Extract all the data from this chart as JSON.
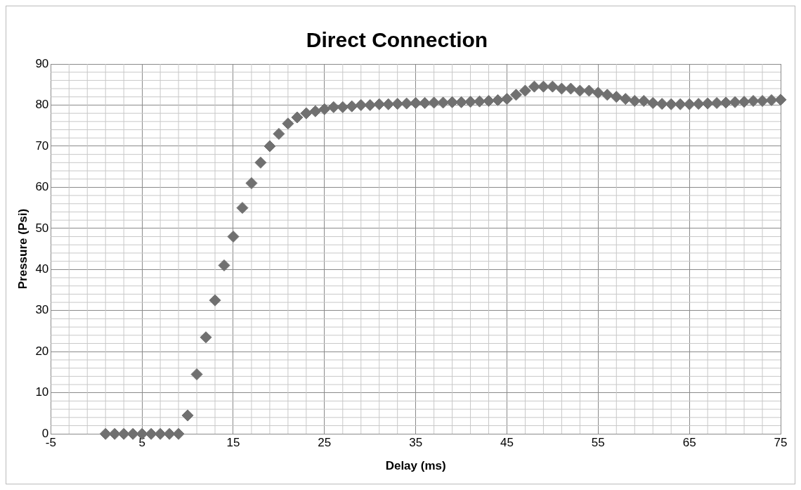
{
  "chart_data": {
    "type": "scatter",
    "title": "Direct Connection",
    "xlabel": "Delay (ms)",
    "ylabel": "Pressure (Psi)",
    "xlim": [
      -5,
      75
    ],
    "xticks": [
      -5,
      5,
      15,
      25,
      35,
      45,
      55,
      65,
      75
    ],
    "ylim": [
      0,
      90
    ],
    "yticks": [
      0,
      10,
      20,
      30,
      40,
      50,
      60,
      70,
      80,
      90
    ],
    "grid": true,
    "legend": false,
    "marker": "diamond",
    "series": [
      {
        "color": "#707070",
        "x": [
          1,
          2,
          3,
          4,
          5,
          6,
          7,
          8,
          9,
          10,
          11,
          12,
          13,
          14,
          15,
          16,
          17,
          18,
          19,
          20,
          21,
          22,
          23,
          24,
          25,
          26,
          27,
          28,
          29,
          30,
          31,
          32,
          33,
          34,
          35,
          36,
          37,
          38,
          39,
          40,
          41,
          42,
          43,
          44,
          45,
          46,
          47,
          48,
          49,
          50,
          51,
          52,
          53,
          54,
          55,
          56,
          57,
          58,
          59,
          60,
          61,
          62,
          63,
          64,
          65,
          66,
          67,
          68,
          69,
          70,
          71,
          72,
          73,
          74,
          75
        ],
        "values": [
          0,
          0,
          0,
          0,
          0,
          0,
          0,
          0,
          0,
          4.5,
          14.5,
          23.5,
          32.5,
          41,
          48,
          55,
          61,
          66,
          70,
          73,
          75.5,
          77,
          78,
          78.5,
          79,
          79.5,
          79.5,
          79.7,
          80,
          80,
          80.2,
          80.2,
          80.3,
          80.4,
          80.5,
          80.5,
          80.6,
          80.6,
          80.7,
          80.7,
          80.8,
          80.9,
          81,
          81.2,
          81.5,
          82.5,
          83.5,
          84.5,
          84.5,
          84.5,
          84,
          84,
          83.5,
          83.5,
          83,
          82.5,
          82,
          81.5,
          81,
          81,
          80.5,
          80.3,
          80.2,
          80.2,
          80.2,
          80.3,
          80.4,
          80.5,
          80.6,
          80.7,
          80.8,
          81,
          81,
          81.2,
          81.3
        ]
      }
    ]
  }
}
